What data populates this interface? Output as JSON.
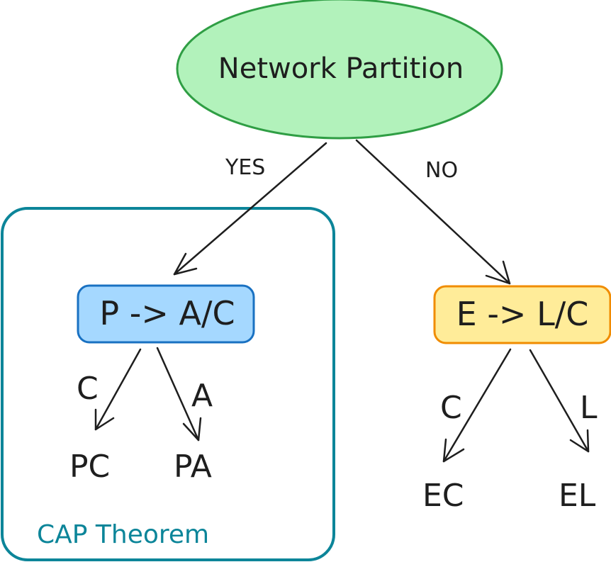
{
  "root": {
    "label": "Network Partition",
    "fill": "#b2f2bb",
    "stroke": "#2f9e44"
  },
  "edges": {
    "yes": "YES",
    "no": "NO"
  },
  "group": {
    "label": "CAP Theorem",
    "stroke": "#0c8599"
  },
  "left_node": {
    "label": "P -> A/C",
    "fill": "#a5d8ff",
    "stroke": "#1971c2",
    "branches": [
      {
        "edge": "C",
        "leaf": "PC"
      },
      {
        "edge": "A",
        "leaf": "PA"
      }
    ]
  },
  "right_node": {
    "label": "E -> L/C",
    "fill": "#ffec99",
    "stroke": "#f08c00",
    "branches": [
      {
        "edge": "C",
        "leaf": "EC"
      },
      {
        "edge": "L",
        "leaf": "EL"
      }
    ]
  }
}
